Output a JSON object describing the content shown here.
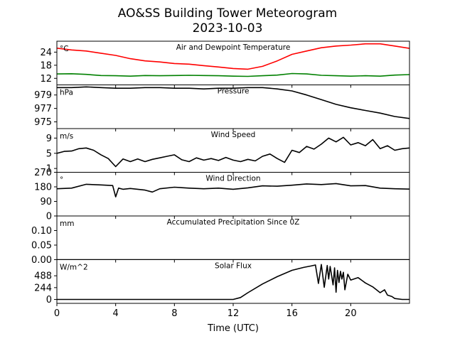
{
  "figure": {
    "title_line1": "AO&SS Building Tower Meteorogram",
    "title_line2": "2023-10-03",
    "xlabel": "Time (UTC)",
    "x_ticks": [
      0,
      4,
      8,
      12,
      16,
      20
    ],
    "x_range": [
      0,
      24
    ]
  },
  "chart_data": [
    {
      "type": "line",
      "title": "Air and Dewpoint Temperature",
      "unit": "°C",
      "ylim": [
        9,
        29
      ],
      "y_ticks": [
        12,
        18,
        24
      ],
      "series": [
        {
          "color": "#ff0000",
          "x": [
            0,
            1,
            2,
            3,
            4,
            5,
            6,
            7,
            8,
            9,
            10,
            11,
            12,
            13,
            14,
            15,
            16,
            17,
            18,
            19,
            20,
            21,
            22,
            23,
            24
          ],
          "y": [
            25.8,
            25,
            24.5,
            23.5,
            22.5,
            21,
            20,
            19.5,
            18.8,
            18.5,
            17.8,
            17.2,
            16.5,
            16.2,
            17.5,
            20,
            23,
            24.5,
            26,
            26.8,
            27.2,
            27.8,
            27.8,
            26.8,
            25.7
          ]
        },
        {
          "color": "#008000",
          "x": [
            0,
            1,
            2,
            3,
            4,
            5,
            6,
            7,
            8,
            9,
            10,
            11,
            12,
            13,
            14,
            15,
            16,
            17,
            18,
            19,
            20,
            21,
            22,
            23,
            24
          ],
          "y": [
            14,
            14.1,
            13.8,
            13.3,
            13.2,
            13,
            13.3,
            13.2,
            13.3,
            13.4,
            13.3,
            13.2,
            13.0,
            12.9,
            13.2,
            13.5,
            14.2,
            14,
            13.4,
            13.2,
            13,
            13.2,
            13,
            13.5,
            13.7
          ]
        }
      ]
    },
    {
      "type": "line",
      "title": "Pressure",
      "unit": "hPa",
      "ylim": [
        974,
        980.5
      ],
      "y_ticks": [
        975,
        977,
        979
      ],
      "series": [
        {
          "color": "#000000",
          "x": [
            0,
            1,
            2,
            3,
            4,
            5,
            6,
            7,
            8,
            9,
            10,
            11,
            12,
            13,
            14,
            15,
            16,
            17,
            18,
            19,
            20,
            21,
            22,
            23,
            24
          ],
          "y": [
            980.1,
            980.1,
            980.2,
            980.1,
            980.0,
            980.0,
            980.1,
            980.1,
            980.0,
            980.0,
            979.9,
            980.0,
            980.0,
            980.1,
            980.1,
            979.9,
            979.6,
            979.0,
            978.3,
            977.6,
            977.1,
            976.7,
            976.3,
            975.8,
            975.5
          ]
        }
      ]
    },
    {
      "type": "line",
      "title": "Wind Speed",
      "unit": "m/s",
      "ylim": [
        0,
        11.5
      ],
      "y_ticks": [
        1,
        5,
        9
      ],
      "series": [
        {
          "color": "#000000",
          "x": [
            0,
            0.5,
            1,
            1.5,
            2,
            2.5,
            3,
            3.5,
            4,
            4.5,
            5,
            5.5,
            6,
            6.5,
            7,
            7.5,
            8,
            8.5,
            9,
            9.5,
            10,
            10.5,
            11,
            11.5,
            12,
            12.5,
            13,
            13.5,
            14,
            14.5,
            15,
            15.5,
            16,
            16.5,
            17,
            17.5,
            18,
            18.5,
            19,
            19.5,
            20,
            20.5,
            21,
            21.5,
            22,
            22.5,
            23,
            23.5,
            24
          ],
          "y": [
            5,
            5.5,
            5.6,
            6.2,
            6.4,
            5.8,
            4.6,
            3.6,
            1.5,
            3.5,
            2.8,
            3.5,
            2.8,
            3.4,
            3.8,
            4.2,
            4.6,
            3.3,
            2.8,
            3.8,
            3.2,
            3.6,
            3.1,
            3.9,
            3.2,
            2.8,
            3.4,
            3.0,
            4.2,
            4.8,
            3.6,
            2.6,
            5.8,
            5.2,
            6.8,
            6.1,
            7.4,
            9.0,
            8.0,
            9.2,
            7.2,
            7.8,
            7.0,
            8.6,
            6.2,
            7.0,
            5.8,
            6.2,
            6.4
          ]
        }
      ]
    },
    {
      "type": "line",
      "title": "Wind Direction",
      "unit": "°",
      "ylim": [
        0,
        270
      ],
      "y_ticks": [
        0,
        90,
        180,
        270
      ],
      "series": [
        {
          "color": "#000000",
          "x": [
            0,
            1,
            2,
            3,
            3.8,
            4.0,
            4.2,
            4.5,
            5,
            6,
            6.5,
            7,
            8,
            9,
            10,
            11,
            12,
            13,
            14,
            15,
            16,
            17,
            18,
            19,
            20,
            21,
            22,
            23,
            24
          ],
          "y": [
            168,
            172,
            196,
            192,
            188,
            118,
            172,
            165,
            170,
            160,
            148,
            168,
            178,
            172,
            168,
            172,
            165,
            174,
            186,
            184,
            190,
            198,
            194,
            200,
            186,
            188,
            172,
            168,
            166
          ]
        }
      ]
    },
    {
      "type": "line",
      "title": "Accumulated Precipitation Since 0Z",
      "unit": "mm",
      "ylim": [
        0,
        0.15
      ],
      "y_ticks": [
        0.0,
        0.05,
        0.1
      ],
      "y_tick_labels": [
        "0.00",
        "0.05",
        "0.10"
      ],
      "series": [
        {
          "color": "#000000",
          "x": [
            0,
            24
          ],
          "y": [
            0,
            0
          ]
        }
      ]
    },
    {
      "type": "line",
      "title": "Solar Flux",
      "unit": "W/m^2",
      "ylim": [
        -80,
        820
      ],
      "y_ticks": [
        0,
        244,
        488
      ],
      "series": [
        {
          "color": "#000000",
          "x": [
            0,
            12,
            12.5,
            13,
            14,
            15,
            16,
            16.8,
            17.3,
            17.6,
            17.8,
            18.0,
            18.2,
            18.4,
            18.5,
            18.6,
            18.8,
            18.9,
            19.0,
            19.1,
            19.2,
            19.3,
            19.4,
            19.5,
            19.6,
            19.8,
            20.0,
            20.5,
            21.0,
            21.5,
            22.0,
            22.3,
            22.5,
            22.8,
            23.0,
            23.5,
            24
          ],
          "y": [
            0,
            0,
            40,
            140,
            320,
            470,
            600,
            660,
            690,
            710,
            330,
            720,
            250,
            700,
            420,
            680,
            300,
            650,
            150,
            600,
            350,
            580,
            420,
            560,
            200,
            520,
            400,
            450,
            340,
            260,
            140,
            200,
            90,
            60,
            20,
            0,
            0
          ]
        }
      ]
    }
  ]
}
